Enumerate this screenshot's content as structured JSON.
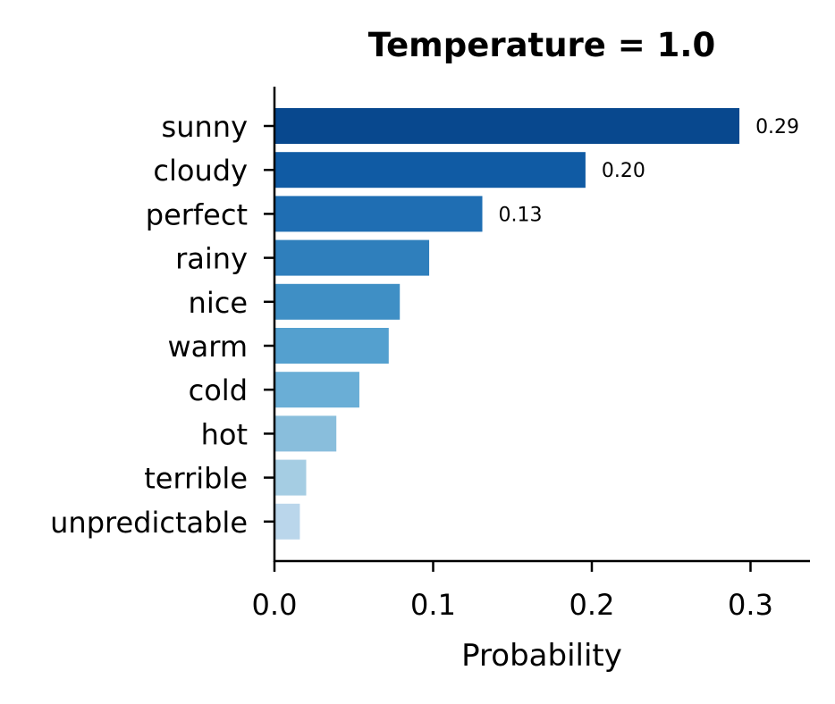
{
  "chart_data": {
    "type": "bar",
    "orientation": "horizontal",
    "title": "Temperature = 1.0",
    "xlabel": "Probability",
    "ylabel": "",
    "xlim": [
      0,
      0.337
    ],
    "xticks": [
      "0.0",
      "0.1",
      "0.2",
      "0.3"
    ],
    "xtick_values": [
      0,
      0.1,
      0.2,
      0.3
    ],
    "grid": false,
    "categories": [
      "sunny",
      "cloudy",
      "perfect",
      "rainy",
      "nice",
      "warm",
      "cold",
      "hot",
      "terrible",
      "unpredictable"
    ],
    "values": [
      0.293,
      0.196,
      0.131,
      0.0975,
      0.079,
      0.072,
      0.0535,
      0.039,
      0.02,
      0.016
    ],
    "data_labels": [
      "0.29",
      "0.20",
      "0.13",
      "",
      "",
      "",
      "",
      "",
      "",
      ""
    ],
    "colors": [
      "#08488e",
      "#105ba4",
      "#1f6eb3",
      "#2f7fbc",
      "#3f8fc5",
      "#54a0cf",
      "#6aaed6",
      "#89bedc",
      "#a5cde3",
      "#bad6eb"
    ]
  }
}
